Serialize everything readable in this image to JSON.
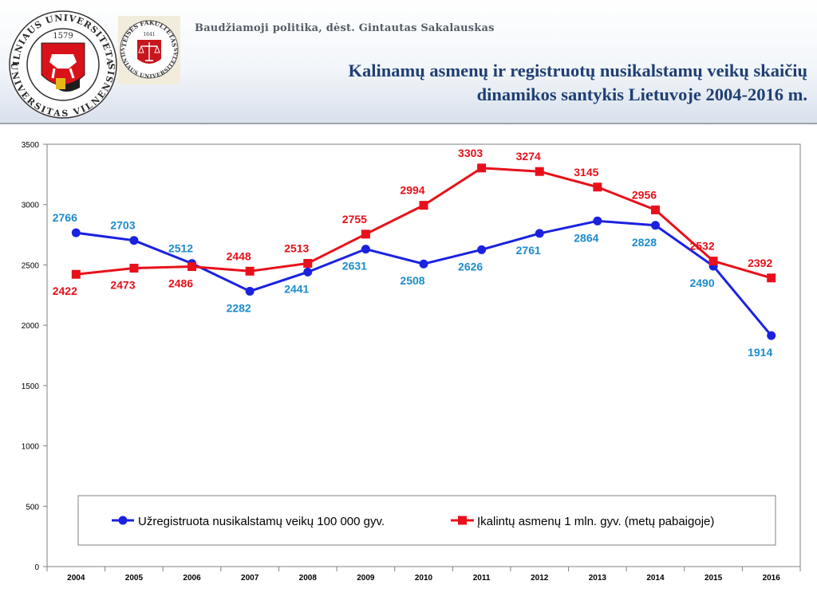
{
  "header": {
    "course": "Baudžiamoji politika, dėst. Gintautas Sakalauskas",
    "title_line1": "Kalinamų asmenų ir registruotų nusikalstamų veikų skaičių",
    "title_line2": "dinamikos santykis Lietuvoje 2004-2016 m.",
    "logo_left": {
      "ring_top": "VILNIAUS UNIVERSITETAS",
      "ring_bottom": "UNIVERSITAS VILNENSIS",
      "year": "1579"
    },
    "logo_right": {
      "ring_top": "TEISĖS FAKULTETAS",
      "ring_bottom": "VILNIAUS UNIVERSITETAS",
      "year": "1641"
    }
  },
  "colors": {
    "series1": "#1a22e0",
    "series1_label": "#1c8ccd",
    "series2": "#e8101a",
    "series2_label": "#e8101a",
    "title": "#1f3f73"
  },
  "chart_data": {
    "type": "line",
    "title": "",
    "xlabel": "",
    "ylabel": "",
    "x": [
      "2004",
      "2005",
      "2006",
      "2007",
      "2008",
      "2009",
      "2010",
      "2011",
      "2012",
      "2013",
      "2014",
      "2015",
      "2016"
    ],
    "ylim": [
      0,
      3500
    ],
    "yticks": [
      0,
      500,
      1000,
      1500,
      2000,
      2500,
      3000,
      3500
    ],
    "grid": false,
    "legend_position": "bottom-inside",
    "series": [
      {
        "name": "Užregistruota nusikalstamų veikų 100 000 gyv.",
        "marker": "circle",
        "values": [
          2766,
          2703,
          2512,
          2282,
          2441,
          2631,
          2508,
          2626,
          2761,
          2864,
          2828,
          2490,
          1914
        ]
      },
      {
        "name": "Įkalintų asmenų 1 mln. gyv. (metų pabaigoje)",
        "marker": "square",
        "values": [
          2422,
          2473,
          2486,
          2448,
          2513,
          2755,
          2994,
          3303,
          3274,
          3145,
          2956,
          2532,
          2392
        ]
      }
    ]
  }
}
